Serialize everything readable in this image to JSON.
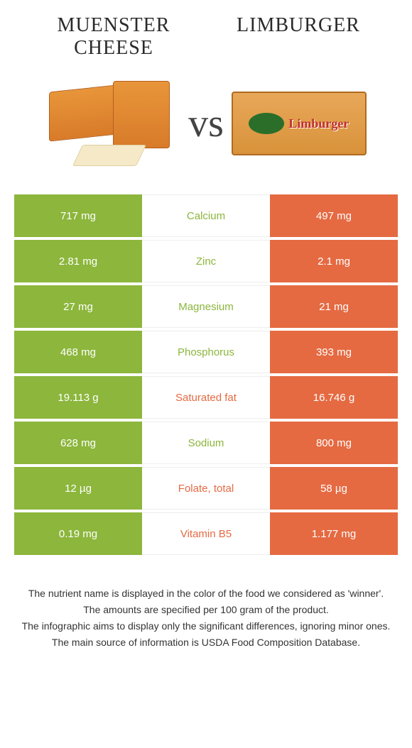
{
  "header": {
    "left_title": "MUENSTER CHEESE",
    "right_title": "LIMBURGER"
  },
  "vs": "vs",
  "colors": {
    "left": "#8cb63c",
    "right": "#e56a42",
    "background": "#ffffff",
    "text": "#333333"
  },
  "table": {
    "rows": [
      {
        "nutrient": "Calcium",
        "left": "717 mg",
        "right": "497 mg",
        "winner": "left"
      },
      {
        "nutrient": "Zinc",
        "left": "2.81 mg",
        "right": "2.1 mg",
        "winner": "left"
      },
      {
        "nutrient": "Magnesium",
        "left": "27 mg",
        "right": "21 mg",
        "winner": "left"
      },
      {
        "nutrient": "Phosphorus",
        "left": "468 mg",
        "right": "393 mg",
        "winner": "left"
      },
      {
        "nutrient": "Saturated fat",
        "left": "19.113 g",
        "right": "16.746 g",
        "winner": "right"
      },
      {
        "nutrient": "Sodium",
        "left": "628 mg",
        "right": "800 mg",
        "winner": "left"
      },
      {
        "nutrient": "Folate, total",
        "left": "12 µg",
        "right": "58 µg",
        "winner": "right"
      },
      {
        "nutrient": "Vitamin B5",
        "left": "0.19 mg",
        "right": "1.177 mg",
        "winner": "right"
      }
    ]
  },
  "footer": {
    "line1": "The nutrient name is displayed in the color of the food we considered as 'winner'.",
    "line2": "The amounts are specified per 100 gram of the product.",
    "line3": "The infographic aims to display only the significant differences, ignoring minor ones.",
    "line4": "The main source of information is USDA Food Composition Database."
  },
  "limburger_label": "Limburger"
}
